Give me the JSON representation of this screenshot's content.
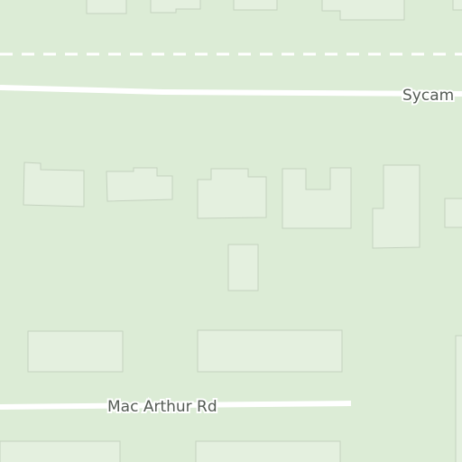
{
  "map": {
    "colors": {
      "land": "#dcecd6",
      "building_fill": "#e4f0df",
      "building_stroke": "#c4d2bf",
      "road": "#ffffff",
      "label": "#545b54"
    },
    "roads": [
      {
        "name": "Sycamore",
        "visible_label": "Sycam"
      },
      {
        "name": "Mac Arthur Rd",
        "visible_label": "Mac Arthur Rd"
      }
    ]
  }
}
